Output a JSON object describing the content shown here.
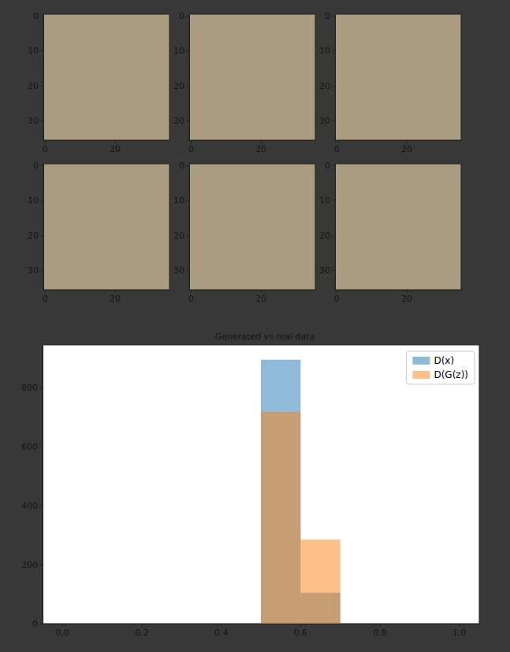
{
  "chart_data": [
    {
      "type": "image",
      "xlim": [
        -0.5,
        35.5
      ],
      "ylim": [
        35.5,
        -0.5
      ],
      "xticks": [
        0,
        20
      ],
      "yticks": [
        0,
        10,
        20,
        30
      ]
    },
    {
      "type": "image",
      "xlim": [
        -0.5,
        35.5
      ],
      "ylim": [
        35.5,
        -0.5
      ],
      "xticks": [
        0,
        20
      ],
      "yticks": [
        0,
        10,
        20,
        30
      ]
    },
    {
      "type": "image",
      "xlim": [
        -0.5,
        35.5
      ],
      "ylim": [
        35.5,
        -0.5
      ],
      "xticks": [
        0,
        20
      ],
      "yticks": [
        0,
        10,
        20,
        30
      ]
    },
    {
      "type": "image",
      "xlim": [
        -0.5,
        35.5
      ],
      "ylim": [
        35.5,
        -0.5
      ],
      "xticks": [
        0,
        20
      ],
      "yticks": [
        0,
        10,
        20,
        30
      ]
    },
    {
      "type": "image",
      "xlim": [
        -0.5,
        35.5
      ],
      "ylim": [
        35.5,
        -0.5
      ],
      "xticks": [
        0,
        20
      ],
      "yticks": [
        0,
        10,
        20,
        30
      ]
    },
    {
      "type": "image",
      "xlim": [
        -0.5,
        35.5
      ],
      "ylim": [
        35.5,
        -0.5
      ],
      "xticks": [
        0,
        20
      ],
      "yticks": [
        0,
        10,
        20,
        30
      ]
    },
    {
      "type": "histogram",
      "title": "Generated vs real data",
      "bins": [
        0.0,
        0.1,
        0.2,
        0.3,
        0.4,
        0.5,
        0.6,
        0.7,
        0.8,
        0.9,
        1.0
      ],
      "series": [
        {
          "name": "D(x)",
          "color": "#1f77b4",
          "values": [
            0,
            0,
            0,
            0,
            0,
            895,
            105,
            0,
            0,
            0
          ]
        },
        {
          "name": "D(G(z))",
          "color": "#ff7f0e",
          "values": [
            0,
            0,
            0,
            0,
            0,
            718,
            285,
            0,
            0,
            0
          ]
        }
      ],
      "xlim": [
        -0.05,
        1.05
      ],
      "ylim": [
        0,
        945
      ],
      "xticks": [
        {
          "value": 0,
          "label": "0.0"
        },
        {
          "value": 0.2,
          "label": "0.2"
        },
        {
          "value": 0.4,
          "label": "0.4"
        },
        {
          "value": 0.6,
          "label": "0.6"
        },
        {
          "value": 0.8,
          "label": "0.8"
        },
        {
          "value": 1,
          "label": "1.0"
        }
      ],
      "yticks": [
        0,
        200,
        400,
        600,
        800
      ],
      "legend": "upper right"
    }
  ]
}
